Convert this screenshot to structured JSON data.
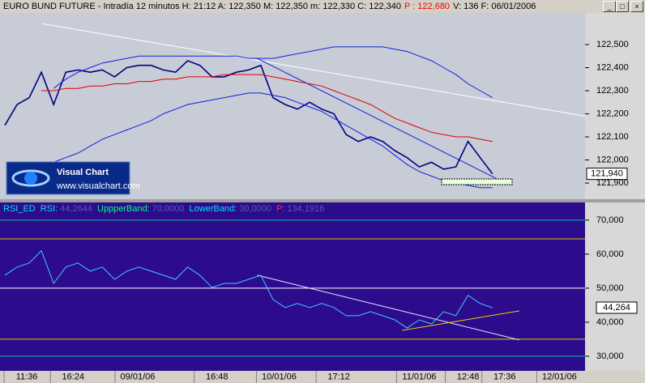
{
  "window": {
    "title_parts": [
      {
        "text": "EURO BUND FUTURE - Intradía 12 minutos  H: 21:12  A: 122,350  M: 122,350  m: 122,330  C: 122,340",
        "color": "#000000"
      },
      {
        "text": "P : 122,680",
        "color": "#ff0000"
      },
      {
        "text": "V: 136  F: 06/01/2006",
        "color": "#000000"
      }
    ]
  },
  "logo": {
    "name": "Visual Chart",
    "url": "www.visualchart.com"
  },
  "chart_data": [
    {
      "type": "line",
      "background": "#c8ccd6",
      "x": [
        0,
        1,
        2,
        3,
        4,
        5,
        6,
        7,
        8,
        9,
        10,
        11,
        12,
        13,
        14,
        15,
        16,
        17,
        18,
        19,
        20,
        21,
        22,
        23,
        24,
        25,
        26,
        27,
        28,
        29,
        30,
        31,
        32,
        33,
        34,
        35,
        36,
        37,
        38,
        39,
        40
      ],
      "xlim": [
        -0.4,
        47.6
      ],
      "ylim": [
        121.83,
        122.637
      ],
      "yticks": [
        {
          "value": 122.5,
          "label": "122,500"
        },
        {
          "value": 122.4,
          "label": "122,400"
        },
        {
          "value": 122.3,
          "label": "122,300"
        },
        {
          "value": 122.2,
          "label": "122,200"
        },
        {
          "value": 122.1,
          "label": "122,100"
        },
        {
          "value": 122.0,
          "label": "122,000"
        },
        {
          "value": 121.9,
          "label": "121,900"
        }
      ],
      "last_value": 121.94,
      "last_label": "121,940",
      "series": [
        {
          "color": "#000080",
          "width": 1.6,
          "values": [
            122.15,
            122.24,
            122.27,
            122.38,
            122.24,
            122.38,
            122.39,
            122.38,
            122.39,
            122.36,
            122.4,
            122.41,
            122.41,
            122.39,
            122.38,
            122.43,
            122.41,
            122.36,
            122.36,
            122.38,
            122.39,
            122.41,
            122.27,
            122.24,
            122.22,
            122.25,
            122.22,
            122.2,
            122.11,
            122.08,
            122.1,
            122.08,
            122.04,
            122.01,
            121.97,
            121.99,
            121.96,
            121.97,
            122.08,
            122.01,
            121.94
          ]
        },
        {
          "color": "#e00000",
          "width": 1,
          "values": [
            null,
            null,
            null,
            122.3,
            122.3,
            122.31,
            122.31,
            122.32,
            122.32,
            122.33,
            122.33,
            122.34,
            122.34,
            122.35,
            122.35,
            122.36,
            122.36,
            122.36,
            122.37,
            122.37,
            122.37,
            122.37,
            122.36,
            122.35,
            122.34,
            122.33,
            122.32,
            122.3,
            122.28,
            122.26,
            122.24,
            122.21,
            122.18,
            122.16,
            122.14,
            122.12,
            122.11,
            122.1,
            122.1,
            122.09,
            122.08
          ]
        },
        {
          "color": "#1020e0",
          "width": 1,
          "values": [
            null,
            null,
            null,
            null,
            122.31,
            122.35,
            122.38,
            122.4,
            122.42,
            122.43,
            122.44,
            122.45,
            122.45,
            122.45,
            122.45,
            122.45,
            122.45,
            122.45,
            122.45,
            122.45,
            122.44,
            122.44,
            122.44,
            122.45,
            122.46,
            122.47,
            122.48,
            122.49,
            122.49,
            122.49,
            122.49,
            122.49,
            122.48,
            122.47,
            122.45,
            122.43,
            122.4,
            122.37,
            122.33,
            122.3,
            122.27
          ]
        },
        {
          "color": "#1020e0",
          "width": 1,
          "values": [
            null,
            null,
            null,
            null,
            121.99,
            122.01,
            122.03,
            122.06,
            122.09,
            122.11,
            122.13,
            122.15,
            122.17,
            122.2,
            122.22,
            122.24,
            122.25,
            122.26,
            122.27,
            122.28,
            122.29,
            122.29,
            122.28,
            122.27,
            122.25,
            122.23,
            122.21,
            122.18,
            122.15,
            122.12,
            122.09,
            122.06,
            122.02,
            121.98,
            121.95,
            121.93,
            121.91,
            121.9,
            121.89,
            121.88,
            121.88
          ]
        }
      ],
      "trendlines": [
        {
          "x": [
            3.1,
            47.6
          ],
          "y": [
            122.59,
            122.19
          ],
          "color": "#ffffff"
        },
        {
          "x": [
            20.7,
            40.3
          ],
          "y": [
            122.44,
            121.92
          ],
          "color": "#1020e0"
        }
      ]
    },
    {
      "type": "line",
      "background": "#2c0c8c",
      "title": "RSI_ED",
      "legend": [
        {
          "name": "RSI:",
          "value": "44,2644",
          "color": "#00e0ff"
        },
        {
          "name": "UppperBand:",
          "value": "70,0000",
          "color": "#00ff80"
        },
        {
          "name": "LowerBand:",
          "value": "30,0000",
          "color": "#00e0ff"
        },
        {
          "name": "P:",
          "value": "134,1916",
          "color": "#ff3030"
        }
      ],
      "x": [
        0,
        1,
        2,
        3,
        4,
        5,
        6,
        7,
        8,
        9,
        10,
        11,
        12,
        13,
        14,
        15,
        16,
        17,
        18,
        19,
        20,
        21,
        22,
        23,
        24,
        25,
        26,
        27,
        28,
        29,
        30,
        31,
        32,
        33,
        34,
        35,
        36,
        37,
        38,
        39,
        40
      ],
      "xlim": [
        -0.4,
        47.6
      ],
      "ylim": [
        25.7,
        75.2
      ],
      "yticks": [
        {
          "value": 70,
          "label": "70,000"
        },
        {
          "value": 60,
          "label": "60,000"
        },
        {
          "value": 50,
          "label": "50,000"
        },
        {
          "value": 40,
          "label": "40,000"
        },
        {
          "value": 30,
          "label": "30,000"
        }
      ],
      "xticks": [
        {
          "value": 1.8,
          "label": "11:36"
        },
        {
          "value": 5.6,
          "label": "16:24"
        },
        {
          "value": 10.9,
          "label": "09/01/06"
        },
        {
          "value": 17.4,
          "label": "16:48"
        },
        {
          "value": 22.5,
          "label": "10/01/06"
        },
        {
          "value": 27.4,
          "label": "17:12"
        },
        {
          "value": 34.0,
          "label": "11/01/06"
        },
        {
          "value": 38.0,
          "label": "12:48"
        },
        {
          "value": 41.0,
          "label": "17:36"
        },
        {
          "value": 45.5,
          "label": "12/01/06"
        }
      ],
      "hlines": [
        {
          "value": 70,
          "color": "#00c0a0"
        },
        {
          "value": 64.5,
          "color": "#e0c000"
        },
        {
          "value": 50,
          "color": "#ffffff"
        },
        {
          "value": 35,
          "color": "#e0c000"
        },
        {
          "value": 30,
          "color": "#00c0a0"
        }
      ],
      "last_value": 44.264,
      "last_label": "44,264",
      "series": [
        {
          "color": "#40c8ff",
          "width": 1,
          "values": [
            53.8,
            56.2,
            57.4,
            61.0,
            51.4,
            56.2,
            57.4,
            55.0,
            56.2,
            52.6,
            55.0,
            56.2,
            55.0,
            53.8,
            52.6,
            56.2,
            53.8,
            50.2,
            51.4,
            51.4,
            52.6,
            53.8,
            46.7,
            44.3,
            45.5,
            44.3,
            45.5,
            44.3,
            41.9,
            41.9,
            43.1,
            41.9,
            40.7,
            38.3,
            40.7,
            39.5,
            43.1,
            41.9,
            47.9,
            45.5,
            44.264
          ]
        }
      ],
      "trendlines": [
        {
          "x": [
            20.7,
            42.2
          ],
          "y": [
            53.8,
            34.8
          ],
          "color": "#e8e8ff"
        },
        {
          "x": [
            32.6,
            42.2
          ],
          "y": [
            37.6,
            43.3
          ],
          "color": "#f0d000"
        }
      ]
    }
  ]
}
